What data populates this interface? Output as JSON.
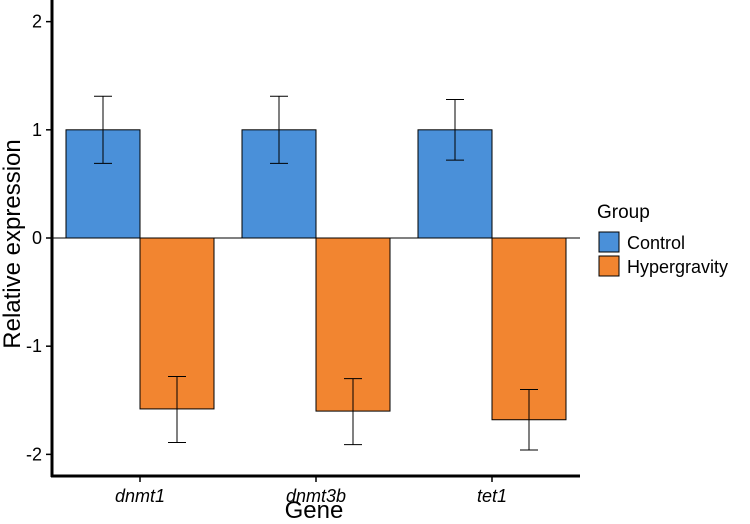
{
  "chart_data": {
    "type": "bar",
    "title": "",
    "xlabel": "Gene",
    "ylabel": "Relative expression",
    "categories": [
      "dnmt1",
      "dnmt3b",
      "tet1"
    ],
    "series": [
      {
        "name": "Control",
        "values": [
          1.0,
          1.0,
          1.0
        ],
        "error_low": [
          0.69,
          0.69,
          0.72
        ],
        "error_high": [
          1.31,
          1.31,
          1.28
        ]
      },
      {
        "name": "Hypergravity",
        "values": [
          -1.58,
          -1.6,
          -1.68
        ],
        "error_low": [
          -1.89,
          -1.91,
          -1.96
        ],
        "error_high": [
          -1.28,
          -1.3,
          -1.4
        ]
      }
    ],
    "ylim": [
      -2.2,
      2.2
    ],
    "yticks": [
      -2,
      -1,
      0,
      1,
      2
    ],
    "ytick_labels": [
      "-2",
      "-1",
      "0",
      "1",
      "2"
    ],
    "colors": {
      "Control": "#4a90d9",
      "Hypergravity": "#f28530"
    },
    "legend": {
      "title": "Group",
      "position": "right"
    },
    "grid": false
  }
}
